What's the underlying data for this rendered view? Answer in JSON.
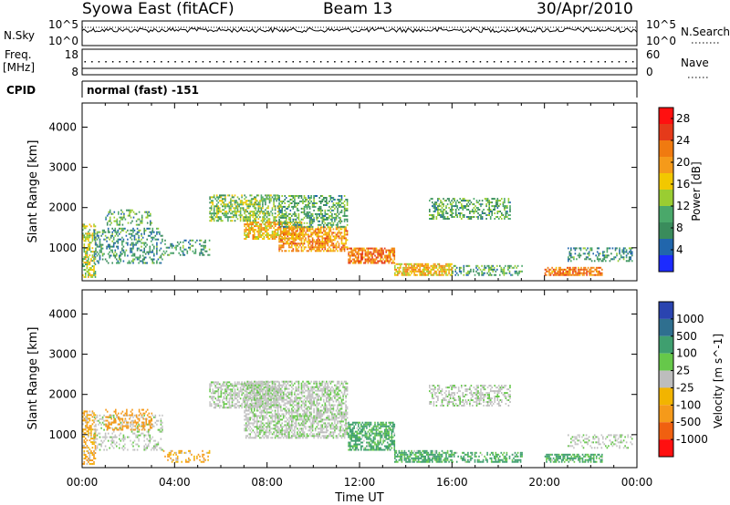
{
  "header": {
    "station": "Syowa East (fitACF)",
    "beam": "Beam 13",
    "date": "30/Apr/2010"
  },
  "colors": {
    "power_scale": [
      "#1c2bff",
      "#2166ac",
      "#3a8c5c",
      "#4aa86a",
      "#9acd32",
      "#f2c800",
      "#f59a1a",
      "#f07a10",
      "#e53a1a",
      "#ff1010"
    ],
    "velocity_scale": [
      "#2a44b0",
      "#2f6f8f",
      "#3f9f6f",
      "#66c84a",
      "#c8c8c8",
      "#bdbdbd",
      "#f2b400",
      "#f59a1a",
      "#f06010",
      "#ff1010"
    ],
    "scatter_gray": "#c0c0c0"
  },
  "chart_data": [
    {
      "type": "line",
      "panel": "N.Sky / N.Search",
      "left_label": "N.Sky",
      "right_label": "N.Search",
      "left_ticks": [
        "10^5",
        "10^0"
      ],
      "right_ticks": [
        "10^5",
        "10^0"
      ],
      "xlim": [
        "00:00",
        "24:00"
      ],
      "series": [
        {
          "name": "N.Sky",
          "style": "solid",
          "approx_level": "10^4"
        },
        {
          "name": "N.Search",
          "style": "dotted",
          "approx_level": "10^4"
        }
      ]
    },
    {
      "type": "scatter",
      "panel": "Freq / Nave",
      "left_label": "Freq.",
      "left_unit": "[MHz]",
      "right_label": "Nave",
      "left_ticks": [
        "18",
        "8"
      ],
      "right_ticks": [
        "60",
        "0"
      ],
      "series": [
        {
          "name": "Freq.",
          "style": "solid",
          "approx_value": 11
        },
        {
          "name": "Nave",
          "style": "dotted",
          "approx_value": 30
        }
      ]
    },
    {
      "type": "text",
      "panel": "CPID",
      "label": "CPID",
      "mode": "normal (fast) -151"
    },
    {
      "type": "heatmap",
      "panel": "Power",
      "ylabel": "Slant Range [km]",
      "yticks": [
        1000,
        2000,
        3000,
        4000
      ],
      "ylim": [
        180,
        4600
      ],
      "colorbar_label": "Power [dB]",
      "colorbar_ticks": [
        4,
        8,
        12,
        16,
        20,
        24,
        28
      ],
      "colorbar_range": [
        0,
        30
      ],
      "regions": [
        {
          "t0": 0.0,
          "t1": 0.6,
          "r0": 250,
          "r1": 1600,
          "value": 14,
          "density": 0.5
        },
        {
          "t0": 0.5,
          "t1": 3.5,
          "r0": 600,
          "r1": 1500,
          "value": 8,
          "density": 0.35
        },
        {
          "t0": 1.0,
          "t1": 3.0,
          "r0": 1550,
          "r1": 1950,
          "value": 10,
          "density": 0.3
        },
        {
          "t0": 3.5,
          "t1": 5.5,
          "r0": 800,
          "r1": 1200,
          "value": 8,
          "density": 0.3
        },
        {
          "t0": 5.5,
          "t1": 8.5,
          "r0": 1650,
          "r1": 2300,
          "value": 12,
          "density": 0.55
        },
        {
          "t0": 7.0,
          "t1": 9.5,
          "r0": 1200,
          "r1": 1650,
          "value": 18,
          "density": 0.65
        },
        {
          "t0": 8.5,
          "t1": 11.5,
          "r0": 900,
          "r1": 1500,
          "value": 20,
          "density": 0.65
        },
        {
          "t0": 8.5,
          "t1": 11.5,
          "r0": 1500,
          "r1": 2300,
          "value": 10,
          "density": 0.45
        },
        {
          "t0": 11.5,
          "t1": 13.5,
          "r0": 600,
          "r1": 1000,
          "value": 22,
          "density": 0.75
        },
        {
          "t0": 13.5,
          "t1": 16.0,
          "r0": 300,
          "r1": 600,
          "value": 18,
          "density": 0.75
        },
        {
          "t0": 15.0,
          "t1": 18.5,
          "r0": 1700,
          "r1": 2200,
          "value": 10,
          "density": 0.45
        },
        {
          "t0": 16.0,
          "t1": 19.0,
          "r0": 300,
          "r1": 550,
          "value": 10,
          "density": 0.45
        },
        {
          "t0": 20.0,
          "t1": 22.5,
          "r0": 300,
          "r1": 500,
          "value": 22,
          "density": 0.7
        },
        {
          "t0": 21.0,
          "t1": 23.8,
          "r0": 650,
          "r1": 1000,
          "value": 8,
          "density": 0.35
        }
      ]
    },
    {
      "type": "heatmap",
      "panel": "Velocity",
      "ylabel": "Slant Range [km]",
      "yticks": [
        1000,
        2000,
        3000,
        4000
      ],
      "ylim": [
        180,
        4600
      ],
      "xlabel": "Time UT",
      "xticks": [
        "00:00",
        "04:00",
        "08:00",
        "12:00",
        "16:00",
        "20:00",
        "00:00"
      ],
      "colorbar_label": "Velocity [m s^-1]",
      "colorbar_ticks": [
        1000,
        500,
        100,
        25,
        -25,
        -100,
        -500,
        -1000
      ],
      "regions": [
        {
          "t0": 0.0,
          "t1": 0.6,
          "r0": 250,
          "r1": 1600,
          "value": -100,
          "density": 0.5
        },
        {
          "t0": 0.5,
          "t1": 3.5,
          "r0": 600,
          "r1": 1500,
          "value": 0,
          "density": 0.3
        },
        {
          "t0": 1.0,
          "t1": 3.0,
          "r0": 1100,
          "r1": 1600,
          "value": -200,
          "density": 0.35
        },
        {
          "t0": 3.5,
          "t1": 5.5,
          "r0": 300,
          "r1": 600,
          "value": -100,
          "density": 0.3
        },
        {
          "t0": 5.5,
          "t1": 8.5,
          "r0": 1650,
          "r1": 2300,
          "value": 0,
          "density": 0.6
        },
        {
          "t0": 7.0,
          "t1": 11.5,
          "r0": 900,
          "r1": 2300,
          "value": 0,
          "density": 0.6
        },
        {
          "t0": 11.5,
          "t1": 13.5,
          "r0": 600,
          "r1": 1300,
          "value": 80,
          "density": 0.65
        },
        {
          "t0": 13.5,
          "t1": 16.0,
          "r0": 300,
          "r1": 600,
          "value": 80,
          "density": 0.7
        },
        {
          "t0": 15.0,
          "t1": 18.5,
          "r0": 1700,
          "r1": 2200,
          "value": 0,
          "density": 0.45
        },
        {
          "t0": 16.0,
          "t1": 19.0,
          "r0": 300,
          "r1": 550,
          "value": 80,
          "density": 0.45
        },
        {
          "t0": 20.0,
          "t1": 22.5,
          "r0": 300,
          "r1": 500,
          "value": 80,
          "density": 0.6
        },
        {
          "t0": 21.0,
          "t1": 23.8,
          "r0": 650,
          "r1": 1000,
          "value": 0,
          "density": 0.3
        }
      ]
    }
  ]
}
